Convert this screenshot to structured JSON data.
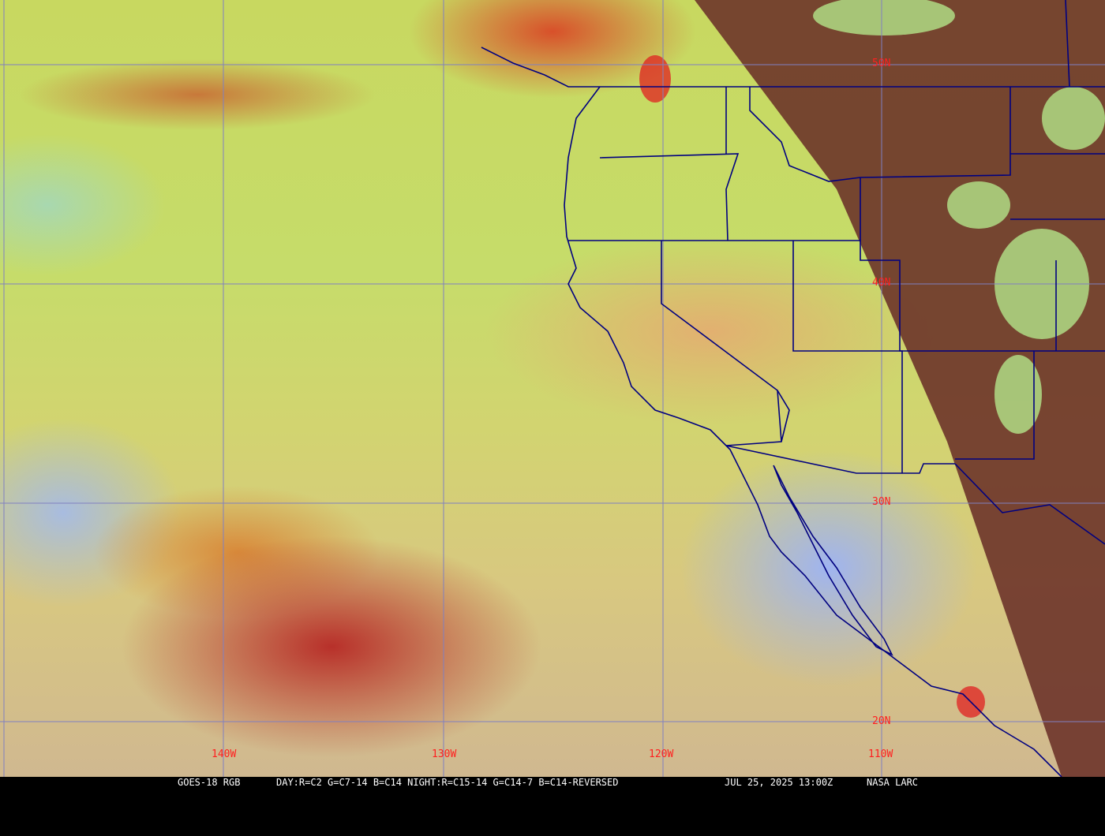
{
  "map": {
    "type": "satellite RGB composite",
    "latitude_labels": [
      "50N",
      "40N",
      "30N",
      "20N"
    ],
    "longitude_labels": [
      "140W",
      "130W",
      "120W",
      "110W"
    ],
    "colors": {
      "grid": "#8080c0",
      "borders": "#000080",
      "labels": "#ff2020",
      "night_region": "#6a3028"
    }
  },
  "footer": {
    "product": "GOES-18 RGB",
    "recipe": "DAY:R=C2 G=C7-14 B=C14 NIGHT:R=C15-14 G=C14-7 B=C14-REVERSED",
    "datetime": "JUL 25, 2025 13:00Z",
    "credit": "NASA LARC"
  }
}
